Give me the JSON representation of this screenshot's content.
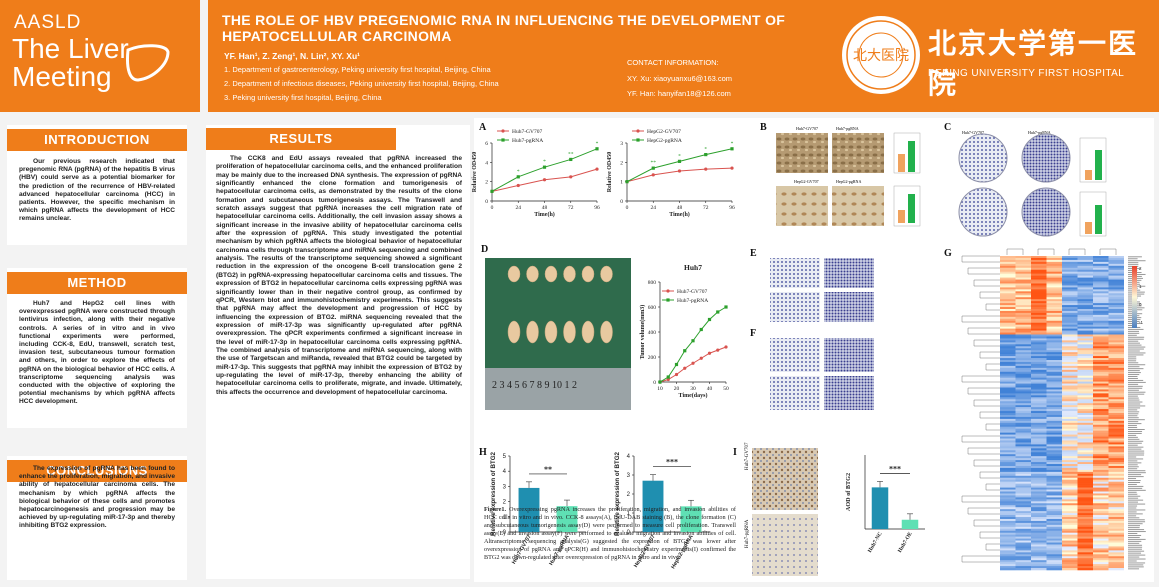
{
  "header": {
    "logo_aasld": "AASLD",
    "logo_the_liver": "The Liver",
    "logo_meeting": "Meeting",
    "title_line1": "THE ROLE OF HBV PREGENOMIC RNA IN INFLUENCING THE DEVELOPMENT OF",
    "title_line2": "HEPATOCELLULAR CARCINOMA",
    "authors": "YF. Han¹, Z. Zeng¹, N. Lin², XY. Xu¹",
    "affiliations": [
      "1. Department of gastroenterology, Peking university first hospital, Beijing, China",
      "2. Department of  infectious diseases, Peking university first hospital, Beijing, China",
      "3. Peking university first hospital, Beijing, China"
    ],
    "contact_title": "CONTACT INFORMATION:",
    "contact_lines": [
      "XY. Xu: xiaoyuanxu6@163.com",
      "YF. Han: hanyifan18@126.com"
    ],
    "hospital_cn": "北京大学第一医院",
    "hospital_en": "PEKING UNIVERSITY FIRST HOSPITAL",
    "seal_text": "北大医院"
  },
  "introduction": {
    "heading": "INTRODUCTION",
    "body": "Our previous research indicated that pregenomic RNA (pgRNA) of the hepatitis B virus (HBV) could serve as a potential biomarker for the prediction of the recurrence of HBV-related advanced hepatocellular carcinoma (HCC) in patients. However, the specific mechanism in which pgRNA affects the development of HCC remains unclear."
  },
  "method": {
    "heading": "METHOD",
    "body": "Huh7 and HepG2 cell lines with overexpressed pgRNA were constructed through lentivirus infection, along with their negative controls. A series of in vitro and in vivo functional experiments were performed, including CCK-8, EdU, transwell, scratch test, invasion test, subcutaneous tumour formation and others, in order to explore the effects of pgRNA on the biological behavior of HCC cells. A transcriptome sequencing analysis was conducted with the objective of exploring the potential mechanisms by which pgRNA affects HCC development."
  },
  "conclusions": {
    "heading": "CONCLUSIONS",
    "body": "The expression of pgRNA has been found to enhance the proliferation, migration, and invasive ability of hepatocellular carcinoma cells. The mechanism by which pgRNA affects the biological behavior of these cells and promotes hepatocarcinogenesis and progression may be achieved by up-regulating miR-17-3p and thereby inhibiting BTG2 expression."
  },
  "results": {
    "heading": "RESULTS",
    "body": "The CCK8 and EdU assays revealed that pgRNA increased the proliferation of hepatocellular carcinoma cells, and the enhanced proliferation may be mainly due to the increased DNA synthesis. The expression of pgRNA significantly enhanced the clone formation and tumorigenesis of hepatocellular carcinoma cells, as demonstrated by the results of the clone formation and subcutaneous tumorigenesis assays. The Transwell and scratch assays suggest that pgRNA increases the cell migration rate of hepatocellular carcinoma cells. Additionally, the cell invasion assay shows a significant increase in the invasive ability of hepatocellular carcinoma cells after the expression of pgRNA. This study investigated the potential mechanism by which pgRNA affects the biological behavior of hepatocellular carcinoma cells through transcriptome and miRNA sequencing and combined analysis. The results of the transcriptome sequencing showed a significant reduction in the expression of the oncogene B-cell translocation gene 2 (BTG2) in pgRNA-expressing hepatocellular carcinoma cells and tissues. The expression of BTG2 in hepatocellular carcinoma cells expressing pgRNA was significantly lower than in their negative control group, as confirmed by qPCR, Western blot and immunohistochemistry experiments. This suggests that pgRNA may affect the development and progression of HCC by influencing the expression of BTG2. miRNA sequencing revealed that the expression of miR-17-3p was significantly up-regulated after pgRNA overexpression. The qPCR experiments confirmed a significant increase in the level of miR-17-3p in hepatocellular carcinoma cells expressing pgRNA. The combined analysis of transcriptome and miRNA sequencing, along with the use of Targetscan and miRanda, revealed that BTG2 could be targeted by miR-17-3p. This suggests that pgRNA may inhibit the expression of BTG2 by up-regulating the level of miR-17-3p, thereby enhancing the ability of hepatocellular carcinoma cells to proliferate, migrate, and invade. Ultimately, this affects the occurrence and development of hepatocellular carcinoma."
  },
  "figure_caption": {
    "label": "Figure1.",
    "text": " Overexpressing pgRNA increases the proliferation, migration, and invasion abilities of HCC cells in vitro and in vivo. CCK-8 assays(A), EdU-DAB staining (B), the clone formation (C) and subcutaneous tumorigenesis assay(D) were performed to measure cell proliferation. Transwell assay(E) and invasion assay(F) were performed to evaluate migration and invasion abilities of cell. Altranscriptome sequencing analysis(G) suggested the expression of BTG2 was lower after overexpression of pgRNA and qPCR(H) and immunohistochemistry experiments(I) confirmed the BTG2 was down-regulated after overexpression of pgRNA in vitro and in vivo."
  },
  "panels": {
    "A": "A",
    "B": "B",
    "C": "C",
    "D": "D",
    "E": "E",
    "F": "F",
    "G": "G",
    "H": "H",
    "I": "I"
  },
  "colors": {
    "orange": "#ef7d1a",
    "red_series": "#d9534f",
    "green_series": "#2ca02c",
    "bar_teal": "#1f8fb0",
    "bar_mint": "#5fe0b4",
    "bar_green": "#22b14c",
    "bar_orange": "#f0a35e"
  },
  "chart_data": [
    {
      "id": "A1",
      "type": "line",
      "ylabel": "Relative OD450",
      "xlabel": "Time(h)",
      "x": [
        0,
        24,
        48,
        72,
        96
      ],
      "ylim": [
        0,
        6
      ],
      "yticks": [
        0,
        2,
        4,
        6
      ],
      "series": [
        {
          "name": "Huh7-GV707",
          "values": [
            1.0,
            1.6,
            2.2,
            2.5,
            3.3
          ]
        },
        {
          "name": "Huh7-pgRNA",
          "values": [
            1.0,
            2.5,
            3.5,
            4.3,
            5.4
          ]
        }
      ],
      "annotations": [
        "*",
        "*",
        "**",
        "*"
      ]
    },
    {
      "id": "A2",
      "type": "line",
      "ylabel": "Relative OD450",
      "xlabel": "Time(h)",
      "x": [
        0,
        24,
        48,
        72,
        96
      ],
      "ylim": [
        0,
        3
      ],
      "yticks": [
        0,
        1,
        2,
        3
      ],
      "series": [
        {
          "name": "HepG2-GV707",
          "values": [
            1.0,
            1.35,
            1.55,
            1.65,
            1.7
          ]
        },
        {
          "name": "HepG2-pgRNA",
          "values": [
            1.0,
            1.7,
            2.05,
            2.4,
            2.7
          ]
        }
      ],
      "annotations": [
        "**",
        "*",
        "*",
        "*"
      ]
    },
    {
      "id": "D",
      "type": "line",
      "title": "Huh7",
      "ylabel": "Tumor volume(mm3)",
      "xlabel": "Time(days)",
      "x": [
        10,
        15,
        20,
        25,
        30,
        35,
        40,
        45,
        50
      ],
      "ylim": [
        0,
        800
      ],
      "yticks": [
        0,
        200,
        400,
        600,
        800
      ],
      "xticks": [
        10,
        20,
        30,
        40,
        50
      ],
      "series": [
        {
          "name": "Huh7-GV707",
          "values": [
            0,
            20,
            60,
            110,
            150,
            190,
            230,
            255,
            280
          ]
        },
        {
          "name": "Huh7-pgRNA",
          "values": [
            0,
            40,
            140,
            250,
            330,
            420,
            500,
            560,
            600
          ]
        }
      ]
    },
    {
      "id": "H1",
      "type": "bar",
      "ylabel": "Relative expression of BTG2",
      "categories": [
        "Huh7-GV707",
        "Huh7-pgRNA"
      ],
      "values": [
        2.9,
        1.7
      ],
      "ylim": [
        0,
        5
      ],
      "yticks": [
        0,
        1,
        2,
        3,
        4,
        5
      ],
      "significance": "**"
    },
    {
      "id": "H2",
      "type": "bar",
      "ylabel": "Relative expression of BTG2",
      "categories": [
        "HepG2-GV707",
        "HepG2-pgRNA"
      ],
      "values": [
        2.7,
        1.35
      ],
      "ylim": [
        0,
        4
      ],
      "yticks": [
        0,
        1,
        2,
        3,
        4
      ],
      "significance": "***"
    },
    {
      "id": "I",
      "type": "bar",
      "ylabel": "AOD of BTG2",
      "categories": [
        "Huh7-NC",
        "Huh7-OE"
      ],
      "values": [
        0.45,
        0.1
      ],
      "ylim": [
        0,
        0.8
      ],
      "significance": "***"
    }
  ],
  "panel_labels": {
    "B": {
      "tl": "Huh7-GV707",
      "tr": "Huh7-pgRNA",
      "bl": "HepG2-GV707",
      "br": "HepG2-pgRNA"
    },
    "C": {
      "tl": "Huh7-GV707",
      "tr": "Huh7-pgRNA"
    },
    "I": {
      "top": "Huh7-GV707",
      "bottom": "Huh7-pgRNA"
    },
    "D_ruler": "2 3 4 5 6 7 8 9 10 1 2"
  },
  "heatmap": {
    "scale_ticks": [
      "2",
      "1",
      "0",
      "-1"
    ]
  }
}
